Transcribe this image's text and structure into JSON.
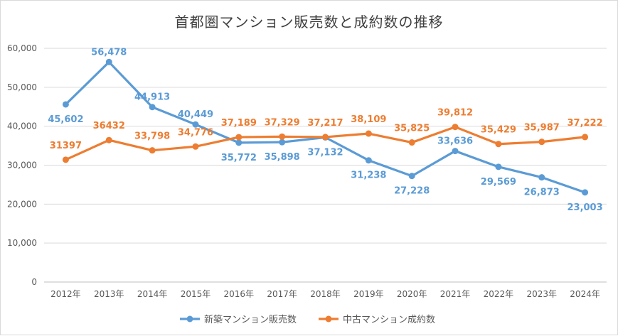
{
  "chart_data": {
    "type": "line",
    "title": "首都圏マンション販売数と成約数の推移",
    "xlabel": "",
    "ylabel": "",
    "categories": [
      "2012年",
      "2013年",
      "2014年",
      "2015年",
      "2016年",
      "2017年",
      "2018年",
      "2019年",
      "2020年",
      "2021年",
      "2022年",
      "2023年",
      "2024年"
    ],
    "ylim": [
      0,
      60000
    ],
    "yticks": [
      "0",
      "10,000",
      "20,000",
      "30,000",
      "40,000",
      "50,000",
      "60,000"
    ],
    "grid": true,
    "legend_position": "bottom",
    "series": [
      {
        "name": "新築マンション販売数",
        "color": "#5b9bd5",
        "values": [
          45602,
          56478,
          44913,
          40449,
          35772,
          35898,
          37132,
          31238,
          27228,
          33636,
          29569,
          26873,
          23003
        ],
        "labels": [
          "45,602",
          "56,478",
          "44,913",
          "40,449",
          "35,772",
          "35,898",
          "37,132",
          "31,238",
          "27,228",
          "33,636",
          "29,569",
          "26,873",
          "23,003"
        ]
      },
      {
        "name": "中古マンション成約数",
        "color": "#ed7d31",
        "values": [
          31397,
          36432,
          33798,
          34776,
          37189,
          37329,
          37217,
          38109,
          35825,
          39812,
          35429,
          35987,
          37222
        ],
        "labels": [
          "31397",
          "36432",
          "33,798",
          "34,776",
          "37,189",
          "37,329",
          "37,217",
          "38,109",
          "35,825",
          "39,812",
          "35,429",
          "35,987",
          "37,222"
        ]
      }
    ]
  }
}
